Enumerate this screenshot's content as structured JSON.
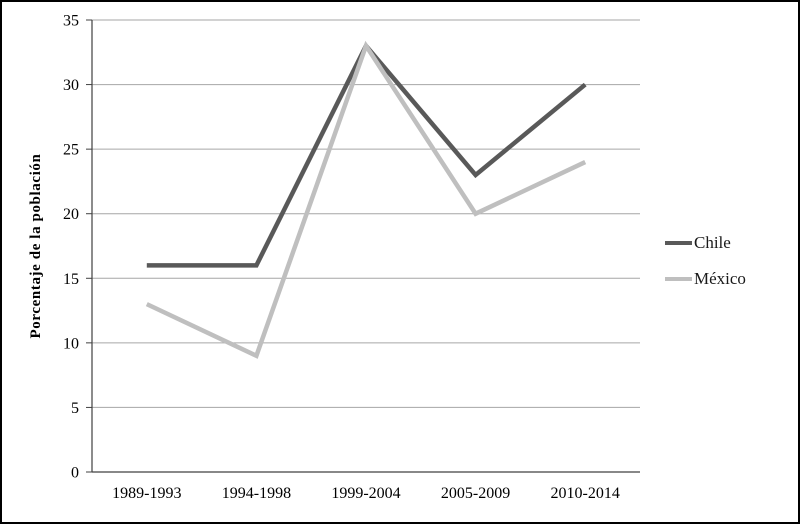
{
  "figure": {
    "background": "#ffffff",
    "border_color": "#000000",
    "gridline_color": "#a6a6a6",
    "axis_color": "#404040"
  },
  "chart_data": {
    "type": "line",
    "title": "",
    "xlabel": "",
    "ylabel": "Porcentaje de la población",
    "categories": [
      "1989-1993",
      "1994-1998",
      "1999-2004",
      "2005-2009",
      "2010-2014"
    ],
    "series": [
      {
        "name": "Chile",
        "color": "#595959",
        "values": [
          16,
          16,
          33,
          23,
          30
        ]
      },
      {
        "name": "México",
        "color": "#bfbfbf",
        "values": [
          13,
          9,
          33,
          20,
          24
        ]
      }
    ],
    "ylim": [
      0,
      35
    ],
    "ytick_step": 5,
    "grid": true,
    "legend_position": "right"
  }
}
